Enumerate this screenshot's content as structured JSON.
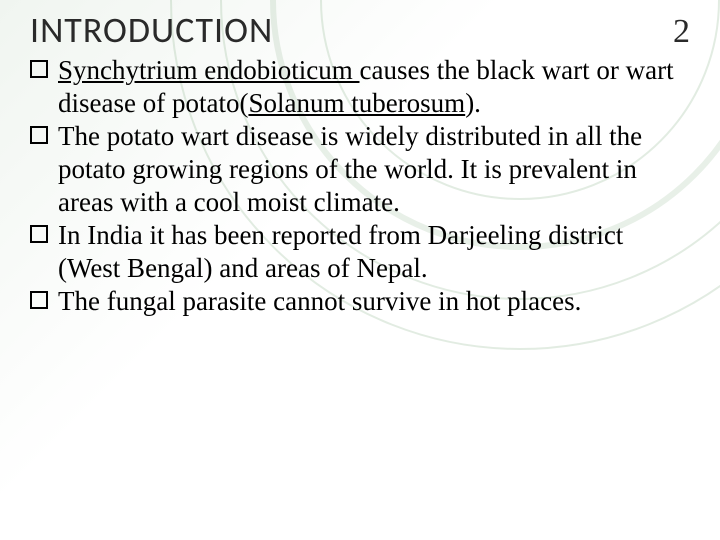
{
  "header": {
    "title": "INTRODUCTION",
    "page_number": "2"
  },
  "bullets": {
    "b1_part1": "Synchytrium",
    "b1_part2": " endobioticum ",
    "b1_part3": "causes the black wart or wart disease of potato(",
    "b1_part4": "Solanum tuberosum",
    "b1_part5": ").",
    "b2": "The potato wart disease is widely distributed in all the potato growing regions of the world. It is prevalent in areas with a cool moist climate.",
    "b3": "In India it has been reported from Darjeeling district  (West Bengal) and areas of Nepal.",
    "b4": "The fungal parasite cannot survive in hot places."
  },
  "style": {
    "title_color": "#2a2a2a",
    "body_color": "#000000",
    "accent_arc_color": "rgba(140,180,140,0.25)",
    "title_fontsize": 36,
    "body_fontsize": 27
  }
}
